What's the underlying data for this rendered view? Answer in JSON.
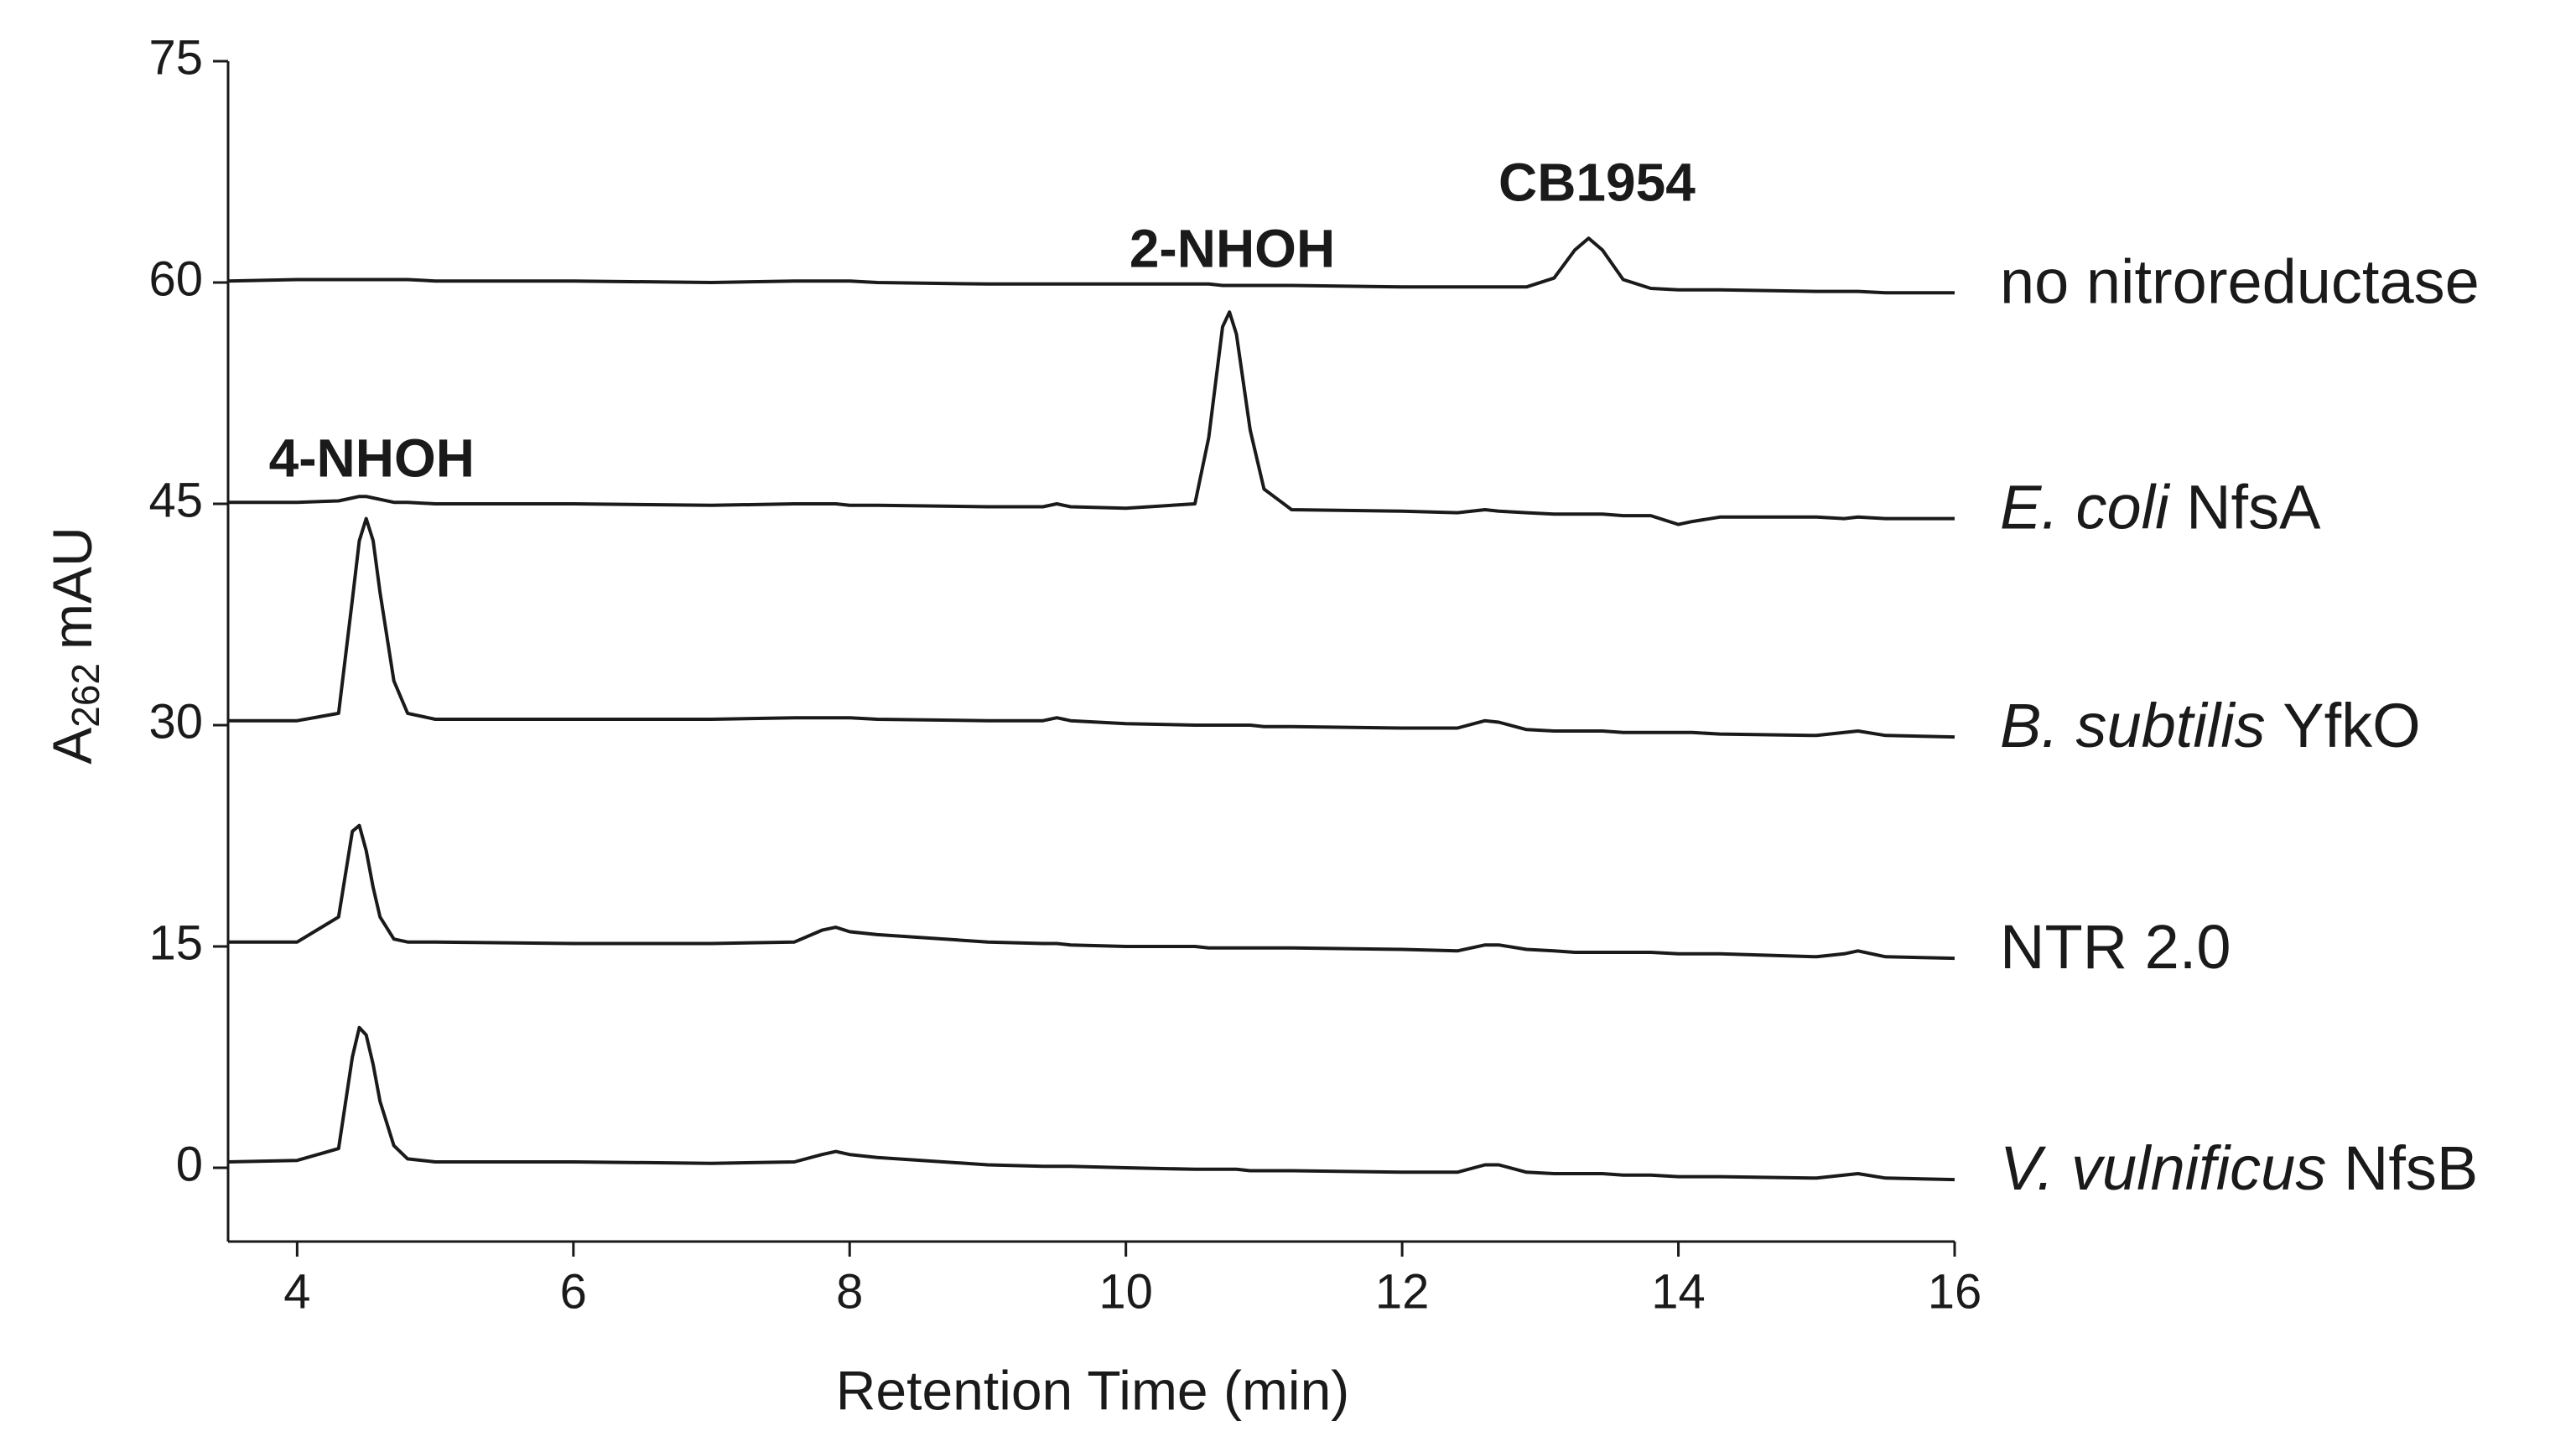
{
  "chart_data": {
    "type": "line",
    "xlabel": "Retention Time (min)",
    "ylabel": {
      "main": "A",
      "sub": "262",
      "unit": "mAU"
    },
    "xlim": [
      3.5,
      16
    ],
    "xticks": [
      4,
      6,
      8,
      10,
      12,
      14,
      16
    ],
    "ylim": [
      -5,
      75
    ],
    "yticks": [
      0,
      15,
      30,
      45,
      60,
      75
    ],
    "grid": false,
    "x": [
      3.5,
      4.0,
      4.3,
      4.4,
      4.45,
      4.5,
      4.55,
      4.6,
      4.7,
      4.8,
      5.0,
      6,
      7,
      7.6,
      7.8,
      7.9,
      8.0,
      8.2,
      9,
      9.4,
      9.5,
      9.6,
      10,
      10.5,
      10.6,
      10.7,
      10.75,
      10.8,
      10.9,
      11.0,
      11.2,
      12,
      12.4,
      12.6,
      12.7,
      12.9,
      13.1,
      13.25,
      13.35,
      13.45,
      13.6,
      13.8,
      14,
      14.1,
      14.3,
      15,
      15.2,
      15.3,
      15.5,
      16
    ],
    "series": [
      {
        "name": "no nitroreductase",
        "name_italic_words": 0,
        "color": "#1a1a1a",
        "values": [
          60.1,
          60.2,
          60.2,
          60.2,
          60.2,
          60.2,
          60.2,
          60.2,
          60.2,
          60.2,
          60.1,
          60.1,
          60.0,
          60.1,
          60.1,
          60.1,
          60.1,
          60.0,
          59.9,
          59.9,
          59.9,
          59.9,
          59.9,
          59.9,
          59.9,
          59.8,
          59.8,
          59.8,
          59.8,
          59.8,
          59.8,
          59.7,
          59.7,
          59.7,
          59.7,
          59.7,
          60.3,
          62.2,
          63.0,
          62.2,
          60.2,
          59.6,
          59.5,
          59.5,
          59.5,
          59.4,
          59.4,
          59.4,
          59.3,
          59.3
        ]
      },
      {
        "name": "E. coli NfsA",
        "name_italic_words": 2,
        "color": "#1a1a1a",
        "values": [
          45.1,
          45.1,
          45.2,
          45.4,
          45.5,
          45.5,
          45.4,
          45.3,
          45.1,
          45.1,
          45.0,
          45.0,
          44.9,
          45.0,
          45.0,
          45.0,
          44.9,
          44.9,
          44.8,
          44.8,
          45.0,
          44.8,
          44.7,
          45.0,
          49.5,
          57.0,
          58.0,
          56.5,
          50.0,
          46.0,
          44.6,
          44.5,
          44.4,
          44.6,
          44.5,
          44.4,
          44.3,
          44.3,
          44.3,
          44.3,
          44.2,
          44.2,
          43.6,
          43.8,
          44.1,
          44.1,
          44.0,
          44.1,
          44.0,
          44.0
        ]
      },
      {
        "name": "B. subtilis YfkO",
        "name_italic_words": 2,
        "color": "#1a1a1a",
        "values": [
          30.3,
          30.3,
          30.8,
          38.5,
          42.5,
          44.0,
          42.5,
          39.0,
          33.0,
          30.8,
          30.4,
          30.4,
          30.4,
          30.5,
          30.5,
          30.5,
          30.5,
          30.4,
          30.3,
          30.3,
          30.5,
          30.3,
          30.1,
          30.0,
          30.0,
          30.0,
          30.0,
          30.0,
          30.0,
          29.9,
          29.9,
          29.8,
          29.8,
          30.3,
          30.2,
          29.7,
          29.6,
          29.6,
          29.6,
          29.6,
          29.5,
          29.5,
          29.5,
          29.5,
          29.4,
          29.3,
          29.5,
          29.6,
          29.3,
          29.2
        ]
      },
      {
        "name": "NTR 2.0",
        "name_italic_words": 0,
        "color": "#1a1a1a",
        "values": [
          15.3,
          15.3,
          17.0,
          22.8,
          23.2,
          21.5,
          19.0,
          17.0,
          15.5,
          15.3,
          15.3,
          15.2,
          15.2,
          15.3,
          16.1,
          16.3,
          16.0,
          15.8,
          15.3,
          15.2,
          15.2,
          15.1,
          15.0,
          15.0,
          14.9,
          14.9,
          14.9,
          14.9,
          14.9,
          14.9,
          14.9,
          14.8,
          14.7,
          15.1,
          15.1,
          14.8,
          14.7,
          14.6,
          14.6,
          14.6,
          14.6,
          14.6,
          14.5,
          14.5,
          14.5,
          14.3,
          14.5,
          14.7,
          14.3,
          14.2
        ]
      },
      {
        "name": "V. vulnificus NfsB",
        "name_italic_words": 2,
        "color": "#1a1a1a",
        "values": [
          0.4,
          0.5,
          1.3,
          7.5,
          9.5,
          9.0,
          7.0,
          4.5,
          1.5,
          0.6,
          0.4,
          0.4,
          0.3,
          0.4,
          0.9,
          1.1,
          0.9,
          0.7,
          0.2,
          0.1,
          0.1,
          0.1,
          0.0,
          -0.1,
          -0.1,
          -0.1,
          -0.1,
          -0.1,
          -0.2,
          -0.2,
          -0.2,
          -0.3,
          -0.3,
          0.2,
          0.2,
          -0.3,
          -0.4,
          -0.4,
          -0.4,
          -0.4,
          -0.5,
          -0.5,
          -0.6,
          -0.6,
          -0.6,
          -0.7,
          -0.5,
          -0.4,
          -0.7,
          -0.8
        ]
      }
    ],
    "annotations": [
      {
        "text": "4-NHOH",
        "x": 4.54,
        "y": 47.8
      },
      {
        "text": "2-NHOH",
        "x": 10.77,
        "y": 62.0
      },
      {
        "text": "CB1954",
        "x": 13.41,
        "y": 66.5
      }
    ]
  }
}
